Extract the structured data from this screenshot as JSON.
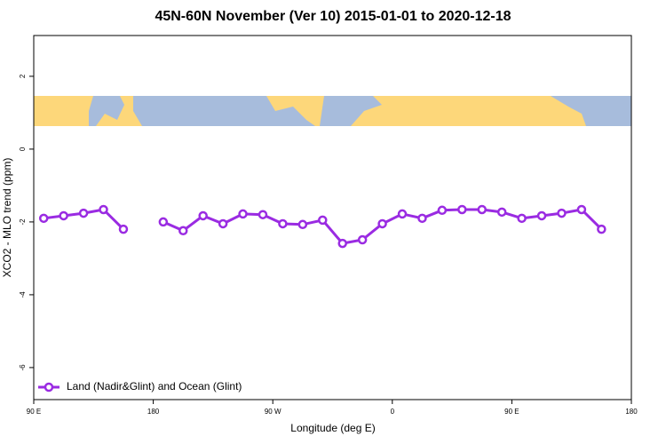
{
  "chart_data": {
    "type": "line",
    "title": "45N-60N November (Ver 10)   2015-01-01 to 2020-12-18",
    "x_label": "Longitude (deg E)",
    "y_label": "XCO2 - MLO trend (ppm)",
    "x": [
      97.5,
      112.5,
      127.5,
      142.5,
      157.5,
      172.5,
      187.5,
      202.5,
      217.5,
      232.5,
      247.5,
      262.5,
      277.5,
      292.5,
      307.5,
      322.5,
      337.5,
      352.5,
      367.5,
      382.5,
      397.5,
      412.5,
      427.5,
      442.5,
      457.5,
      472.5,
      487.5,
      502.5,
      517.5
    ],
    "series": [
      {
        "name": "Land (Nadir&Glint) and Ocean (Glint)",
        "color": "#9a2be2",
        "values": [
          -1.9,
          -1.83,
          -1.76,
          -1.66,
          -2.2,
          null,
          -2.0,
          -2.24,
          -1.83,
          -2.05,
          -1.78,
          -1.8,
          -2.05,
          -2.07,
          -1.95,
          -2.59,
          -2.49,
          -2.05,
          -1.78,
          -1.9,
          -1.68,
          -1.66,
          -1.66,
          -1.73,
          -1.9,
          -1.83,
          -1.76,
          -1.66,
          -2.2
        ]
      }
    ],
    "xlim": [
      90,
      540
    ],
    "xticks": [
      {
        "value": 90,
        "label": "90 E"
      },
      {
        "value": 180,
        "label": "180"
      },
      {
        "value": 270,
        "label": "90 W"
      },
      {
        "value": 360,
        "label": "0"
      },
      {
        "value": 450,
        "label": "90 E"
      },
      {
        "value": 540,
        "label": "180"
      }
    ],
    "ylim": [
      -6.88,
      3.12
    ],
    "yticks": [
      -6,
      -4,
      -2,
      0,
      2
    ],
    "legend": "bottom-left"
  }
}
